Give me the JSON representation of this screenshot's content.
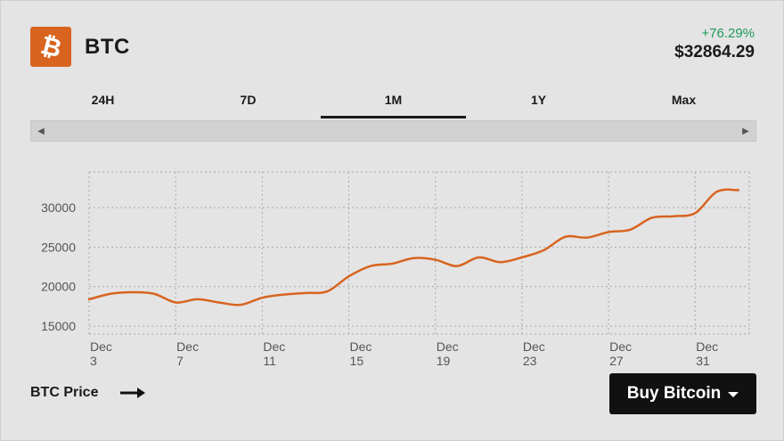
{
  "header": {
    "logo_icon": "bitcoin-logo-icon",
    "logo_glyph": "₿",
    "ticker": "BTC",
    "change": "+76.29%",
    "price": "$32864.29"
  },
  "tabs": [
    {
      "label": "24H",
      "active": false
    },
    {
      "label": "7D",
      "active": false
    },
    {
      "label": "1M",
      "active": true
    },
    {
      "label": "1Y",
      "active": false
    },
    {
      "label": "Max",
      "active": false
    }
  ],
  "scrollbar": {
    "left_icon": "scroll-left-icon",
    "right_icon": "scroll-right-icon"
  },
  "chart_data": {
    "type": "line",
    "series": [
      {
        "values": [
          [
            3,
            18400
          ],
          [
            4,
            19100
          ],
          [
            5,
            19300
          ],
          [
            6,
            19100
          ],
          [
            7,
            18000
          ],
          [
            8,
            18400
          ],
          [
            9,
            18000
          ],
          [
            10,
            17700
          ],
          [
            11,
            18600
          ],
          [
            12,
            19000
          ],
          [
            13,
            19200
          ],
          [
            14,
            19400
          ],
          [
            15,
            21300
          ],
          [
            16,
            22600
          ],
          [
            17,
            22900
          ],
          [
            18,
            23600
          ],
          [
            19,
            23400
          ],
          [
            20,
            22600
          ],
          [
            21,
            23700
          ],
          [
            22,
            23100
          ],
          [
            23,
            23700
          ],
          [
            24,
            24600
          ],
          [
            25,
            26300
          ],
          [
            26,
            26200
          ],
          [
            27,
            26900
          ],
          [
            28,
            27200
          ],
          [
            29,
            28700
          ],
          [
            30,
            28900
          ],
          [
            31,
            29300
          ],
          [
            32,
            32000
          ],
          [
            33,
            32200
          ]
        ],
        "color": "#d8641f"
      }
    ],
    "x_ticks": [
      {
        "value": 3,
        "line1": "Dec",
        "line2": "3"
      },
      {
        "value": 7,
        "line1": "Dec",
        "line2": "7"
      },
      {
        "value": 11,
        "line1": "Dec",
        "line2": "11"
      },
      {
        "value": 15,
        "line1": "Dec",
        "line2": "15"
      },
      {
        "value": 19,
        "line1": "Dec",
        "line2": "19"
      },
      {
        "value": 23,
        "line1": "Dec",
        "line2": "23"
      },
      {
        "value": 27,
        "line1": "Dec",
        "line2": "27"
      },
      {
        "value": 31,
        "line1": "Dec",
        "line2": "31"
      }
    ],
    "y_ticks": [
      "15000",
      "20000",
      "25000",
      "30000"
    ],
    "xlim": [
      3,
      33.5
    ],
    "ylim": [
      14000,
      34500
    ],
    "grid": true,
    "grid_style": "dotted"
  },
  "footer": {
    "label": "BTC Price",
    "arrow_icon": "arrow-right-icon",
    "buy_label": "Buy Bitcoin",
    "caret_icon": "chevron-down-icon"
  }
}
